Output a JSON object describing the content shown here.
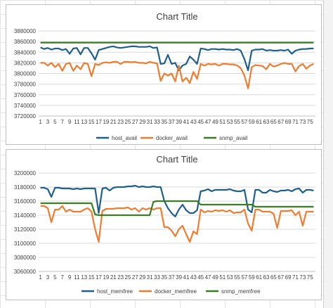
{
  "chart_data": [
    {
      "type": "line",
      "title": "Chart Title",
      "x": [
        1,
        2,
        3,
        4,
        5,
        6,
        7,
        8,
        9,
        10,
        11,
        12,
        13,
        14,
        15,
        16,
        17,
        18,
        19,
        20,
        21,
        22,
        23,
        24,
        25,
        26,
        27,
        28,
        29,
        30,
        31,
        32,
        33,
        34,
        35,
        36,
        37,
        38,
        39,
        40,
        41,
        42,
        43,
        44,
        45,
        46,
        47,
        48,
        49,
        50,
        51,
        52,
        53,
        54,
        55,
        56,
        57,
        58,
        59,
        60,
        61,
        62,
        63,
        64,
        65,
        66,
        67,
        68,
        69,
        70,
        71,
        72,
        73,
        74,
        75,
        76
      ],
      "x_tick_labels": [
        "1",
        "3",
        "5",
        "7",
        "9",
        "11",
        "13",
        "15",
        "17",
        "19",
        "21",
        "23",
        "25",
        "27",
        "29",
        "31",
        "33",
        "35",
        "37",
        "39",
        "41",
        "43",
        "45",
        "47",
        "49",
        "51",
        "53",
        "55",
        "57",
        "59",
        "61",
        "63",
        "65",
        "67",
        "69",
        "71",
        "73",
        "75"
      ],
      "ylim": [
        3720000,
        3880000
      ],
      "y_ticks": [
        "3720000",
        "3740000",
        "3760000",
        "3780000",
        "3800000",
        "3820000",
        "3840000",
        "3860000",
        "3880000"
      ],
      "grid": true,
      "legend_position": "bottom",
      "series": [
        {
          "name": "host_avail",
          "color": "#1f5f8b",
          "values": [
            3849000,
            3846000,
            3848000,
            3845000,
            3847000,
            3847000,
            3844000,
            3846000,
            3837000,
            3847000,
            3848000,
            3836000,
            3848000,
            3848000,
            3838000,
            3826000,
            3844000,
            3846000,
            3848000,
            3850000,
            3851000,
            3849000,
            3848000,
            3849000,
            3850000,
            3851000,
            3851000,
            3850000,
            3850000,
            3850000,
            3851000,
            3848000,
            3849000,
            3818000,
            3819000,
            3835000,
            3818000,
            3820000,
            3806000,
            3815000,
            3818000,
            3832000,
            3826000,
            3818000,
            3847000,
            3846000,
            3844000,
            3846000,
            3846000,
            3845000,
            3846000,
            3845000,
            3845000,
            3844000,
            3846000,
            3843000,
            3827000,
            3806000,
            3843000,
            3845000,
            3845000,
            3846000,
            3843000,
            3844000,
            3843000,
            3843000,
            3844000,
            3843000,
            3845000,
            3837000,
            3843000,
            3845000,
            3846000,
            3846000,
            3847000,
            3847000
          ]
        },
        {
          "name": "docker_avail",
          "color": "#ed7d31",
          "values": [
            3820000,
            3820000,
            3815000,
            3820000,
            3812000,
            3818000,
            3805000,
            3818000,
            3820000,
            3805000,
            3815000,
            3808000,
            3820000,
            3818000,
            3795000,
            3818000,
            3816000,
            3820000,
            3821000,
            3820000,
            3822000,
            3822000,
            3818000,
            3822000,
            3822000,
            3821000,
            3822000,
            3820000,
            3820000,
            3819000,
            3822000,
            3820000,
            3819000,
            3786000,
            3800000,
            3796000,
            3800000,
            3785000,
            3815000,
            3785000,
            3792000,
            3782000,
            3803000,
            3790000,
            3818000,
            3815000,
            3818000,
            3817000,
            3818000,
            3815000,
            3818000,
            3818000,
            3817000,
            3817000,
            3815000,
            3810000,
            3796000,
            3772000,
            3812000,
            3816000,
            3815000,
            3814000,
            3808000,
            3818000,
            3813000,
            3815000,
            3818000,
            3820000,
            3818000,
            3818000,
            3804000,
            3814000,
            3818000,
            3809000,
            3815000,
            3818000
          ]
        },
        {
          "name": "snmp_avail",
          "color": "#3a7d22",
          "values": [
            3858000,
            3858000,
            3858000,
            3858000,
            3858000,
            3858000,
            3858000,
            3858000,
            3858000,
            3858000,
            3858000,
            3858000,
            3858000,
            3858000,
            3858000,
            3858000,
            3858000,
            3858000,
            3858000,
            3858000,
            3858000,
            3858000,
            3858000,
            3858000,
            3858000,
            3858000,
            3858000,
            3858000,
            3858000,
            3858000,
            3858000,
            3858000,
            3858000,
            3858000,
            3858000,
            3858000,
            3858000,
            3858000,
            3858000,
            3858000,
            3858000,
            3858000,
            3858000,
            3858000,
            3858000,
            3858000,
            3858000,
            3858000,
            3858000,
            3858000,
            3858000,
            3858000,
            3858000,
            3858000,
            3858000,
            3858000,
            3858000,
            3858000,
            3858000,
            3858000,
            3858000,
            3858000,
            3858000,
            3858000,
            3858000,
            3858000,
            3858000,
            3858000,
            3858000,
            3858000,
            3858000,
            3858000,
            3858000,
            3858000,
            3858000,
            3858000
          ]
        }
      ]
    },
    {
      "type": "line",
      "title": "Chart Title",
      "x": [
        1,
        2,
        3,
        4,
        5,
        6,
        7,
        8,
        9,
        10,
        11,
        12,
        13,
        14,
        15,
        16,
        17,
        18,
        19,
        20,
        21,
        22,
        23,
        24,
        25,
        26,
        27,
        28,
        29,
        30,
        31,
        32,
        33,
        34,
        35,
        36,
        37,
        38,
        39,
        40,
        41,
        42,
        43,
        44,
        45,
        46,
        47,
        48,
        49,
        50,
        51,
        52,
        53,
        54,
        55,
        56,
        57,
        58,
        59,
        60,
        61,
        62,
        63,
        64,
        65,
        66,
        67,
        68,
        69,
        70,
        71,
        72,
        73,
        74,
        75,
        76
      ],
      "x_tick_labels": [
        "1",
        "3",
        "5",
        "7",
        "9",
        "11",
        "13",
        "15",
        "17",
        "19",
        "21",
        "23",
        "25",
        "27",
        "29",
        "31",
        "33",
        "35",
        "37",
        "39",
        "41",
        "43",
        "45",
        "47",
        "49",
        "51",
        "53",
        "55",
        "57",
        "59",
        "61",
        "63",
        "65",
        "67",
        "69",
        "71",
        "73",
        "75"
      ],
      "ylim": [
        3060000,
        3200000
      ],
      "y_ticks": [
        "3060000",
        "3080000",
        "3100000",
        "3120000",
        "3140000",
        "3160000",
        "3180000",
        "3200000"
      ],
      "grid": true,
      "legend_position": "bottom",
      "series": [
        {
          "name": "host_memfree",
          "color": "#1f5f8b",
          "values": [
            3179000,
            3179000,
            3177000,
            3166000,
            3179000,
            3179000,
            3178000,
            3178000,
            3178000,
            3177000,
            3178000,
            3177000,
            3178000,
            3178000,
            3178000,
            3178000,
            3143000,
            3178000,
            3179000,
            3175000,
            3179000,
            3180000,
            3180000,
            3180000,
            3181000,
            3181000,
            3182000,
            3180000,
            3181000,
            3180000,
            3180000,
            3181000,
            3180000,
            3180000,
            3160000,
            3150000,
            3143000,
            3138000,
            3148000,
            3155000,
            3147000,
            3143000,
            3143000,
            3147000,
            3174000,
            3175000,
            3177000,
            3174000,
            3176000,
            3176000,
            3176000,
            3176000,
            3177000,
            3175000,
            3174000,
            3174000,
            3176000,
            3148000,
            3144000,
            3176000,
            3176000,
            3172000,
            3172000,
            3176000,
            3174000,
            3173000,
            3175000,
            3175000,
            3176000,
            3174000,
            3177000,
            3178000,
            3172000,
            3176000,
            3176000,
            3175000
          ]
        },
        {
          "name": "docker_memfree",
          "color": "#ed7d31",
          "values": [
            3153000,
            3153000,
            3150000,
            3130000,
            3148000,
            3148000,
            3153000,
            3145000,
            3148000,
            3145000,
            3145000,
            3145000,
            3148000,
            3150000,
            3145000,
            3120000,
            3102000,
            3146000,
            3149000,
            3149000,
            3149000,
            3150000,
            3150000,
            3150000,
            3151000,
            3148000,
            3150000,
            3145000,
            3150000,
            3148000,
            3150000,
            3148000,
            3150000,
            3150000,
            3123000,
            3123000,
            3118000,
            3110000,
            3120000,
            3125000,
            3113000,
            3102000,
            3117000,
            3113000,
            3148000,
            3144000,
            3146000,
            3145000,
            3147000,
            3146000,
            3147000,
            3145000,
            3147000,
            3143000,
            3144000,
            3144000,
            3148000,
            3128000,
            3118000,
            3148000,
            3148000,
            3145000,
            3145000,
            3145000,
            3142000,
            3122000,
            3146000,
            3146000,
            3146000,
            3147000,
            3140000,
            3145000,
            3125000,
            3145000,
            3145000,
            3145000
          ]
        },
        {
          "name": "snmp_memfree",
          "color": "#3a7d22",
          "values": [
            3157000,
            3157000,
            3157000,
            3157000,
            3157000,
            3157000,
            3157000,
            3157000,
            3157000,
            3157000,
            3157000,
            3157000,
            3157000,
            3157000,
            3157000,
            3141000,
            3140000,
            3140000,
            3140000,
            3140000,
            3140000,
            3140000,
            3140000,
            3140000,
            3140000,
            3140000,
            3140000,
            3140000,
            3140000,
            3140000,
            3140000,
            3159000,
            3160000,
            3160000,
            3160000,
            3160000,
            3160000,
            3160000,
            3160000,
            3160000,
            3160000,
            3160000,
            3160000,
            3160000,
            3155000,
            3155000,
            3155000,
            3155000,
            3155000,
            3155000,
            3155000,
            3155000,
            3155000,
            3155000,
            3155000,
            3155000,
            3155000,
            3155000,
            3155000,
            3152000,
            3152000,
            3152000,
            3152000,
            3152000,
            3152000,
            3152000,
            3152000,
            3152000,
            3152000,
            3152000,
            3152000,
            3152000,
            3152000,
            3152000,
            3152000,
            3152000
          ]
        }
      ]
    }
  ]
}
